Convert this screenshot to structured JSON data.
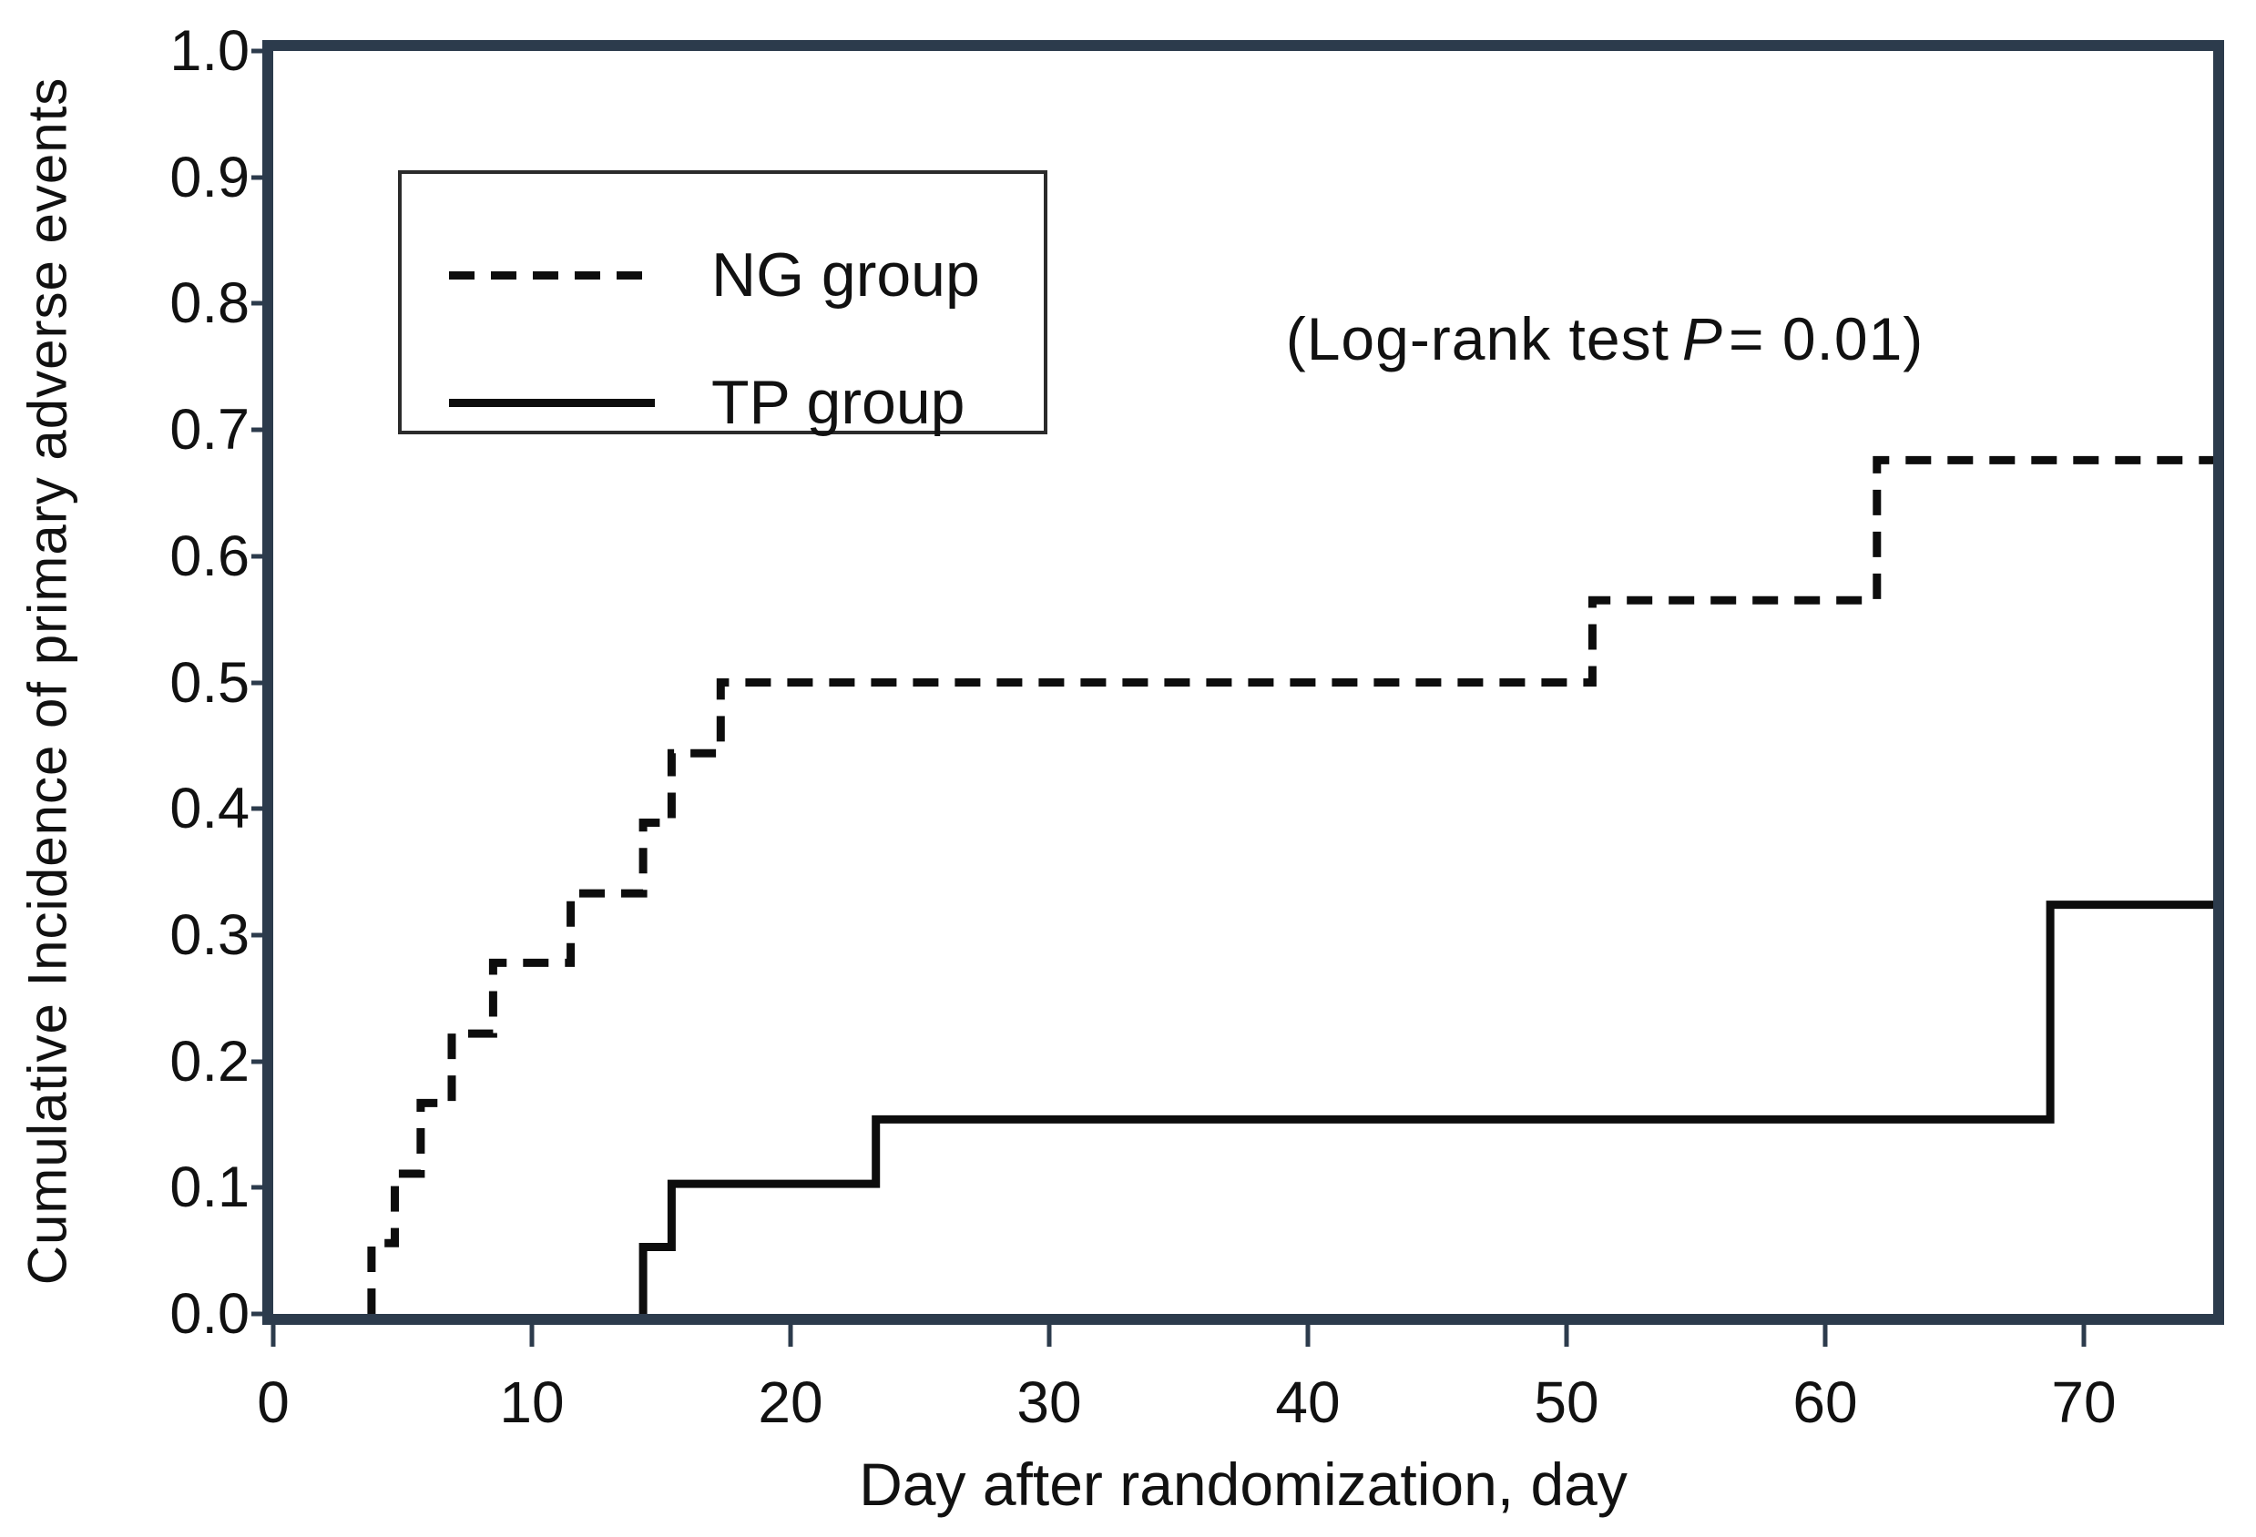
{
  "figure": {
    "y_axis_title": "Cumulative Incidence of primary adverse events",
    "x_axis_title": "Day after randomization, day",
    "annotation": {
      "prefix": "(Log-rank test",
      "stat": "P",
      "suffix": "= 0.01)"
    }
  },
  "legend": {
    "items": [
      {
        "label": "NG group",
        "line_style": "dashed"
      },
      {
        "label": "TP group",
        "line_style": "solid"
      }
    ]
  },
  "colors": {
    "frame": "#2c3b4c",
    "curve": "#0d0d0d",
    "text": "#111111",
    "background": "#ffffff",
    "legend_border": "#2b2b2b"
  },
  "chart_data": {
    "type": "line",
    "subtype": "kaplan-meier-cumulative-incidence-steps",
    "title": "",
    "xlabel": "Day after randomization, day",
    "ylabel": "Cumulative Incidence of primary adverse events",
    "xlim": [
      0,
      75
    ],
    "ylim": [
      0,
      1.0
    ],
    "grid": false,
    "legend_position": "upper-left-inside",
    "x_ticks": [
      {
        "v": 0,
        "label": "0"
      },
      {
        "v": 10,
        "label": "10"
      },
      {
        "v": 20,
        "label": "20"
      },
      {
        "v": 30,
        "label": "30"
      },
      {
        "v": 40,
        "label": "40"
      },
      {
        "v": 50,
        "label": "50"
      },
      {
        "v": 60,
        "label": "60"
      },
      {
        "v": 70,
        "label": "70"
      }
    ],
    "y_ticks": [
      {
        "v": 0.0,
        "label": "0.0"
      },
      {
        "v": 0.1,
        "label": "0.1"
      },
      {
        "v": 0.2,
        "label": "0.2"
      },
      {
        "v": 0.3,
        "label": "0.3"
      },
      {
        "v": 0.4,
        "label": "0.4"
      },
      {
        "v": 0.5,
        "label": "0.5"
      },
      {
        "v": 0.6,
        "label": "0.6"
      },
      {
        "v": 0.7,
        "label": "0.7"
      },
      {
        "v": 0.8,
        "label": "0.8"
      },
      {
        "v": 0.9,
        "label": "0.9"
      },
      {
        "v": 1.0,
        "label": "1.0"
      }
    ],
    "series": [
      {
        "name": "NG group",
        "line_style": "dashed",
        "start_value": 0,
        "end_day": 75,
        "steps": [
          {
            "day": 3.8,
            "value": 0.056
          },
          {
            "day": 4.7,
            "value": 0.111
          },
          {
            "day": 5.7,
            "value": 0.167
          },
          {
            "day": 6.9,
            "value": 0.222
          },
          {
            "day": 8.5,
            "value": 0.278
          },
          {
            "day": 11.5,
            "value": 0.333
          },
          {
            "day": 14.3,
            "value": 0.389
          },
          {
            "day": 15.4,
            "value": 0.444
          },
          {
            "day": 17.3,
            "value": 0.5
          },
          {
            "day": 51.0,
            "value": 0.565
          },
          {
            "day": 62.0,
            "value": 0.676
          }
        ]
      },
      {
        "name": "TP group",
        "line_style": "solid",
        "start_value": 0,
        "end_day": 75,
        "steps": [
          {
            "day": 14.3,
            "value": 0.053
          },
          {
            "day": 15.4,
            "value": 0.103
          },
          {
            "day": 23.3,
            "value": 0.154
          },
          {
            "day": 68.7,
            "value": 0.324
          }
        ]
      }
    ]
  }
}
